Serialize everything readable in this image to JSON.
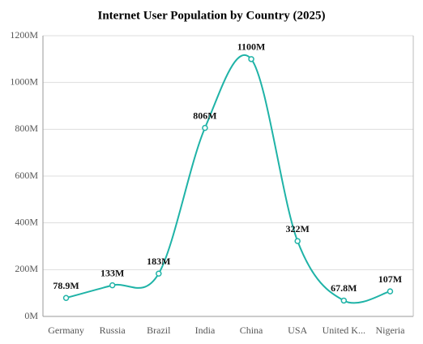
{
  "chart_data": {
    "type": "line",
    "title": "Internet User Population by Country (2025)",
    "categories": [
      "Germany",
      "Russia",
      "Brazil",
      "India",
      "China",
      "USA",
      "United K...",
      "Nigeria"
    ],
    "values": [
      78.9,
      133,
      183,
      806,
      1100,
      322,
      67.8,
      107
    ],
    "value_labels": [
      "78.9M",
      "133M",
      "183M",
      "806M",
      "1100M",
      "322M",
      "67.8M",
      "107M"
    ],
    "color": "#1fb3a7",
    "smooth": true,
    "grid": true,
    "ylim": [
      0,
      1200
    ],
    "yticks": [
      {
        "value": 0,
        "label": "0M"
      },
      {
        "value": 200,
        "label": "200M"
      },
      {
        "value": 400,
        "label": "400M"
      },
      {
        "value": 600,
        "label": "600M"
      },
      {
        "value": 800,
        "label": "800M"
      },
      {
        "value": 1000,
        "label": "1000M"
      },
      {
        "value": 1200,
        "label": "1200M"
      }
    ]
  }
}
